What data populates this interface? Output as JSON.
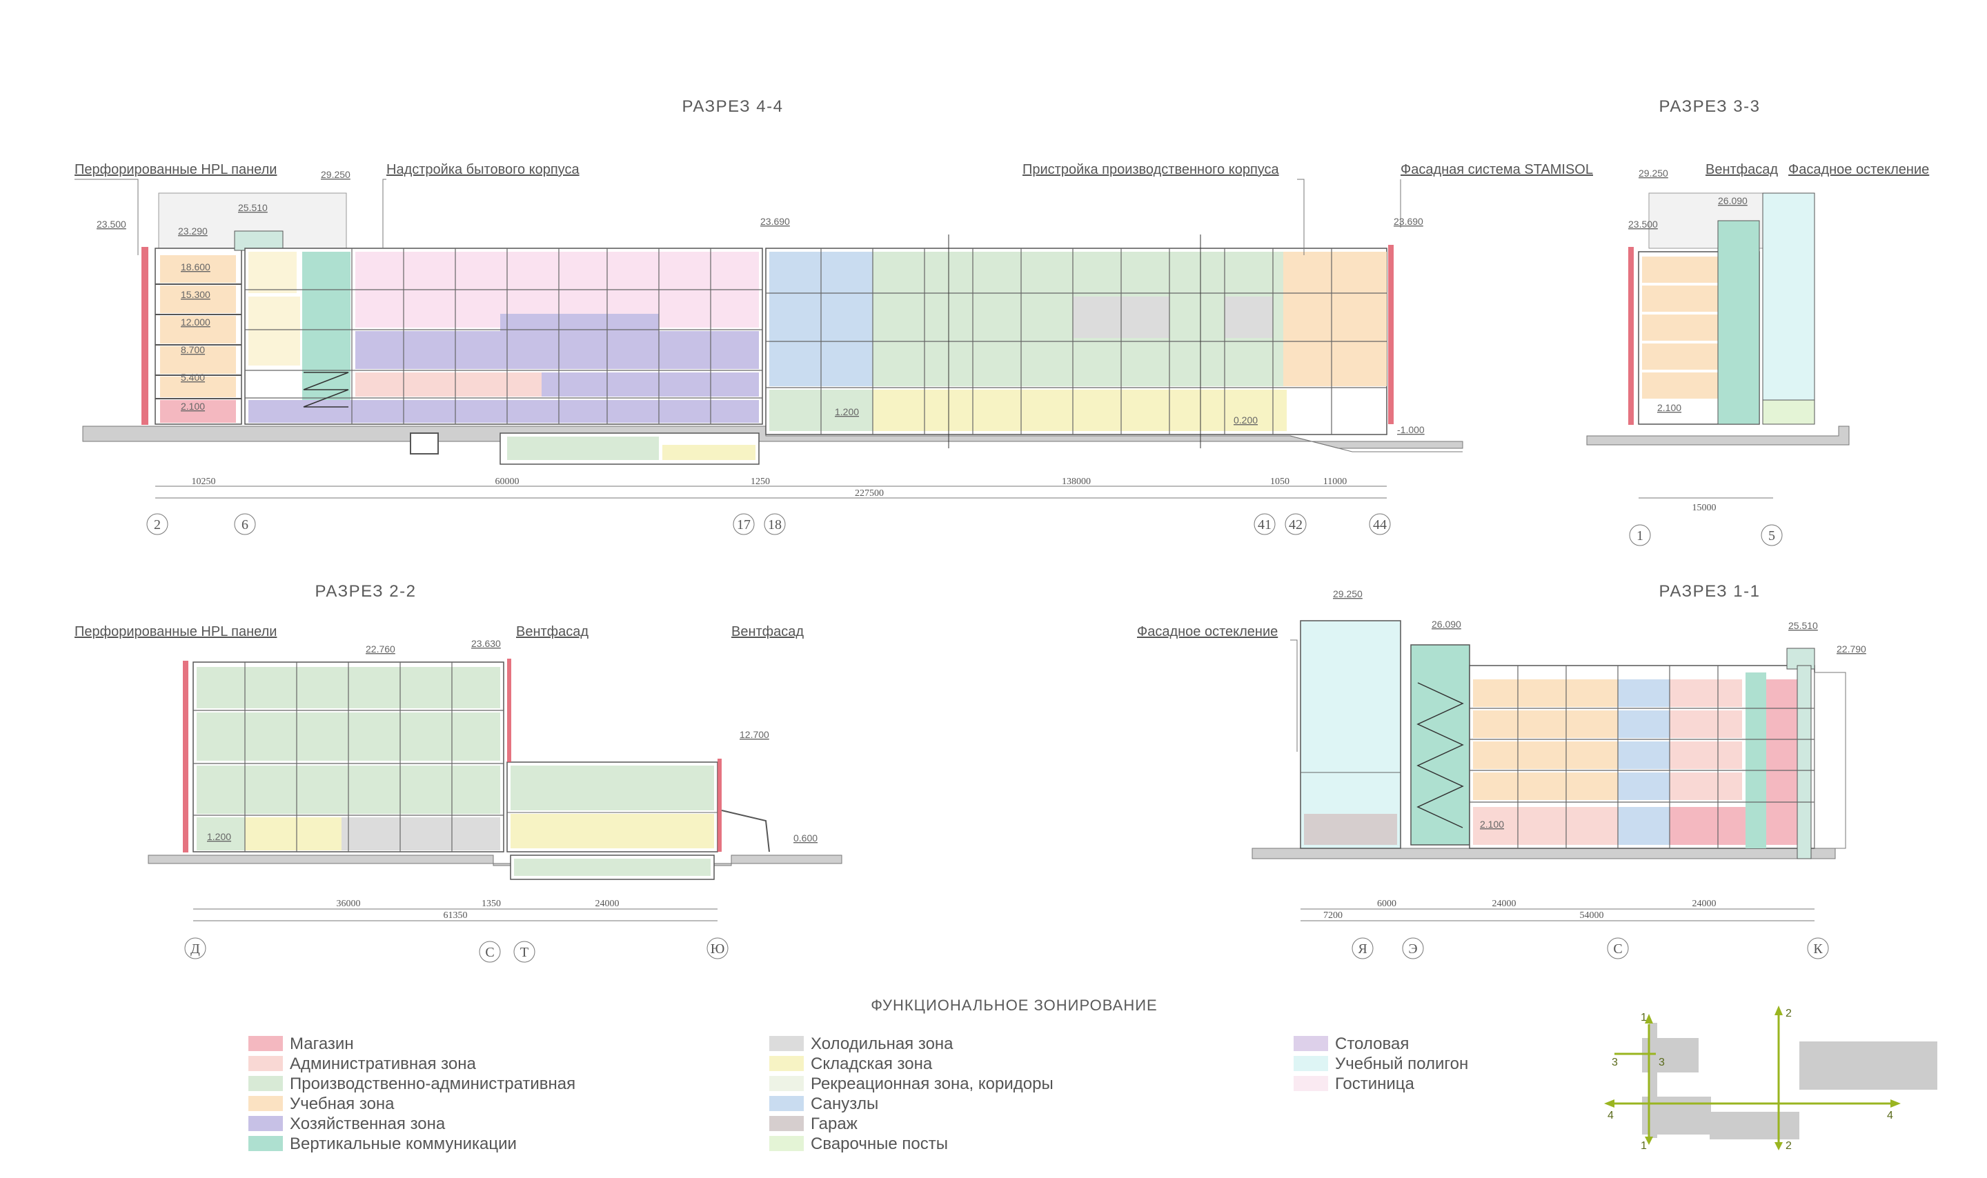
{
  "sections": {
    "s44": {
      "title": "РАЗРЕЗ  4-4",
      "callouts": [
        "Перфорированные HPL панели",
        "Надстройка бытового корпуса",
        "Пристройка производственного корпуса",
        "Фасадная система STAMISOL"
      ],
      "elevations": [
        "23.500",
        "23.290",
        "29.250",
        "25.510",
        "18.600",
        "15.300",
        "12.000",
        "8.700",
        "5.400",
        "2.100",
        "23.690",
        "1.200",
        "0.200",
        "23.690",
        "-1.000"
      ],
      "dims": [
        "10250",
        "60000",
        "1250",
        "227500",
        "138000",
        "1050",
        "11000"
      ],
      "axes": [
        "2",
        "6",
        "17",
        "18",
        "41",
        "42",
        "44"
      ]
    },
    "s33": {
      "title": "РАЗРЕЗ  3-3",
      "callouts": [
        "Вентфасад",
        "Фасадное остекление"
      ],
      "elevations": [
        "29.250",
        "26.090",
        "23.500",
        "2.100"
      ],
      "dims": [
        "15000"
      ],
      "axes": [
        "1",
        "5"
      ]
    },
    "s22": {
      "title": "РАЗРЕЗ  2-2",
      "callouts": [
        "Перфорированные HPL панели",
        "Вентфасад",
        "Вентфасад"
      ],
      "elevations": [
        "22.760",
        "23.630",
        "12.700",
        "1.200",
        "0.600"
      ],
      "dims": [
        "36000",
        "1350",
        "24000",
        "61350"
      ],
      "axes": [
        "Д",
        "С",
        "Т",
        "Ю"
      ]
    },
    "s11": {
      "title": "РАЗРЕЗ  1-1",
      "callouts": [
        "Фасадное остекление"
      ],
      "elevations": [
        "29.250",
        "26.090",
        "25.510",
        "22.790",
        "2.100"
      ],
      "dims": [
        "7200",
        "6000",
        "24000",
        "24000",
        "54000"
      ],
      "axes": [
        "Я",
        "Э",
        "С",
        "К"
      ]
    }
  },
  "legend": {
    "title": "ФУНКЦИОНАЛЬНОЕ ЗОНИРОВАНИЕ",
    "col1": [
      {
        "label": "Магазин",
        "color": "#f4b8c0"
      },
      {
        "label": "Административная зона",
        "color": "#f9d8d4"
      },
      {
        "label": "Производственно-административная",
        "color": "#d8ead6"
      },
      {
        "label": "Учебная зона",
        "color": "#fbe2c2"
      },
      {
        "label": "Хозяйственная зона",
        "color": "#c7c1e6"
      },
      {
        "label": "Вертикальные коммуникации",
        "color": "#aee0d0"
      }
    ],
    "col2": [
      {
        "label": "Холодильная зона",
        "color": "#dcdcdc"
      },
      {
        "label": "Складская зона",
        "color": "#f7f3c4"
      },
      {
        "label": "Рекреационная зона, коридоры",
        "color": "#eef3e6"
      },
      {
        "label": "Санузлы",
        "color": "#c9dcf0"
      },
      {
        "label": "Гараж",
        "color": "#d6cece"
      },
      {
        "label": "Сварочные посты",
        "color": "#e4f4d6"
      }
    ],
    "col3": [
      {
        "label": "Столовая",
        "color": "#ddd0ea"
      },
      {
        "label": "Учебный полигон",
        "color": "#def5f5"
      },
      {
        "label": "Гостиница",
        "color": "#faeaf2"
      }
    ]
  },
  "keyplan": {
    "labels": [
      "1",
      "1",
      "2",
      "2",
      "3",
      "3",
      "4",
      "4"
    ],
    "accent": "#9ab520"
  }
}
